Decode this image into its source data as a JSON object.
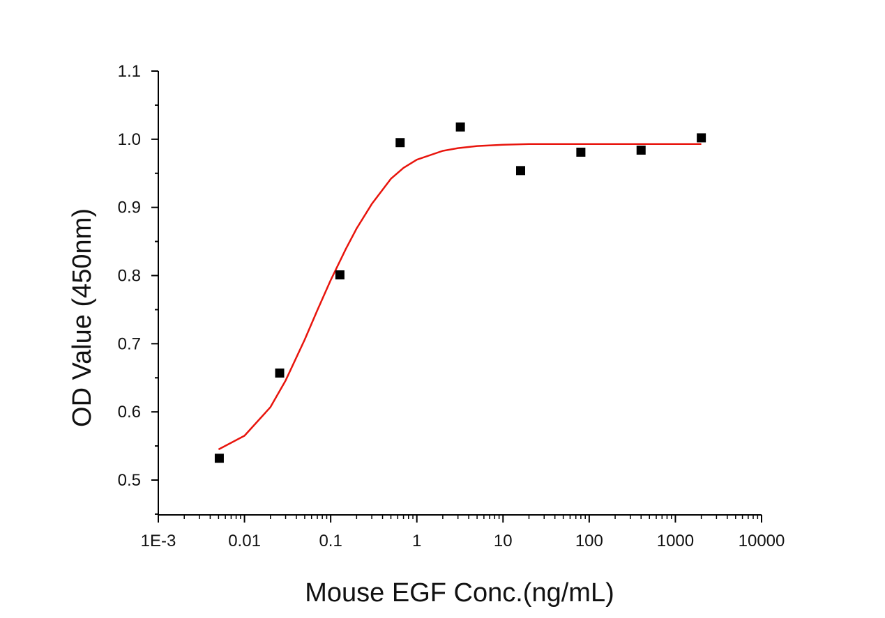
{
  "chart_data": {
    "type": "scatter",
    "title": "",
    "xlabel": "Mouse EGF Conc.(ng/mL)",
    "ylabel": "OD Value (450nm)",
    "x_scale": "log",
    "xlim": [
      0.001,
      10000
    ],
    "ylim": [
      0.45,
      1.1
    ],
    "x_tick_values": [
      0.001,
      0.01,
      0.1,
      1,
      10,
      100,
      1000,
      10000
    ],
    "x_tick_labels": [
      "1E-3",
      "0.01",
      "0.1",
      "1",
      "10",
      "100",
      "1000",
      "10000"
    ],
    "y_tick_values": [
      0.5,
      0.6,
      0.7,
      0.8,
      0.9,
      1.0,
      1.1
    ],
    "y_tick_labels": [
      "0.5",
      "0.6",
      "0.7",
      "0.8",
      "0.9",
      "1.0",
      "1.1"
    ],
    "grid": false,
    "legend": "none",
    "series": [
      {
        "kind": "points",
        "marker": "square",
        "color": "#000000",
        "x": [
          0.0051,
          0.0256,
          0.128,
          0.64,
          3.2,
          16,
          80,
          400,
          2000
        ],
        "y": [
          0.532,
          0.657,
          0.801,
          0.995,
          1.018,
          0.954,
          0.981,
          0.984,
          1.002
        ]
      },
      {
        "kind": "fit-line",
        "color": "#e8140c",
        "x": [
          0.005,
          0.01,
          0.02,
          0.03,
          0.05,
          0.07,
          0.1,
          0.15,
          0.2,
          0.3,
          0.5,
          0.7,
          1,
          2,
          3,
          5,
          10,
          20,
          50,
          100,
          300,
          1000,
          2000
        ],
        "y": [
          0.545,
          0.565,
          0.607,
          0.646,
          0.706,
          0.749,
          0.793,
          0.839,
          0.869,
          0.905,
          0.942,
          0.958,
          0.97,
          0.983,
          0.987,
          0.99,
          0.992,
          0.993,
          0.993,
          0.993,
          0.993,
          0.993,
          0.993
        ]
      }
    ]
  }
}
